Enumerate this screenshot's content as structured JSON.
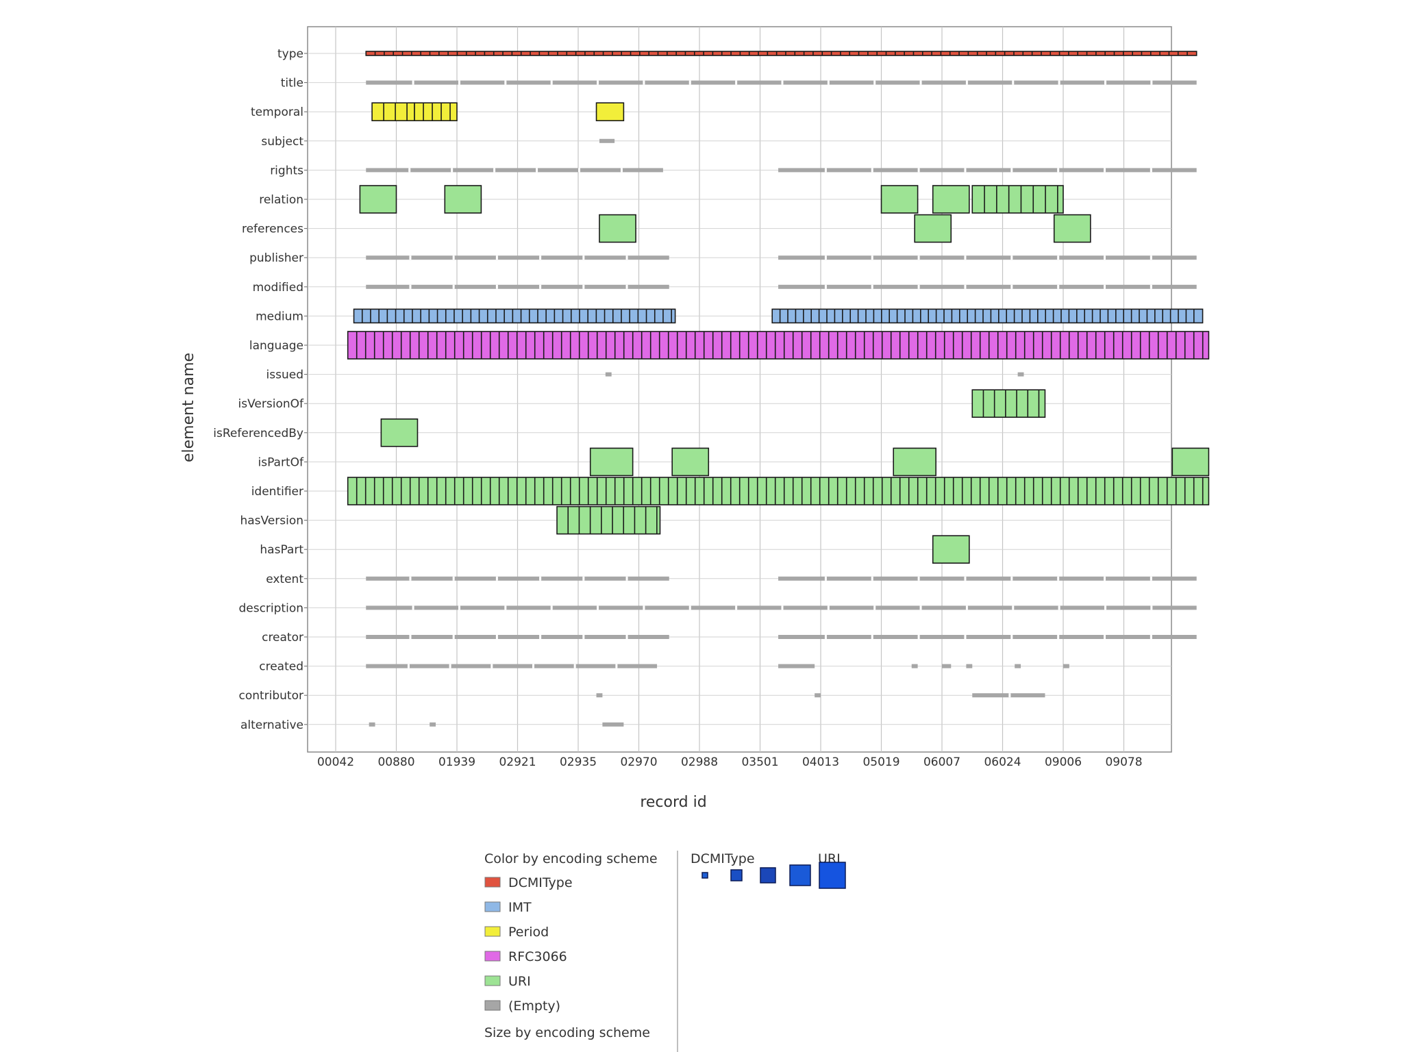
{
  "chart_data": {
    "type": "heatmap",
    "xlabel": "record id",
    "ylabel": "element name",
    "x_ticks": [
      "00042",
      "00880",
      "01939",
      "02921",
      "02935",
      "02970",
      "02988",
      "03501",
      "04013",
      "05019",
      "06007",
      "06024",
      "09006",
      "09078"
    ],
    "y_categories": [
      "type",
      "title",
      "temporal",
      "subject",
      "rights",
      "relation",
      "references",
      "publisher",
      "modified",
      "medium",
      "language",
      "issued",
      "isVersionOf",
      "isReferencedBy",
      "isPartOf",
      "identifier",
      "hasVersion",
      "hasPart",
      "extent",
      "description",
      "creator",
      "created",
      "contributor",
      "alternative"
    ],
    "colors": {
      "DCMIType": "#e0533f",
      "IMT": "#8fb8e6",
      "Period": "#f2ee3a",
      "RFC3066": "#e06ae6",
      "URI": "#9de394",
      "(Empty)": "#a6a6a6"
    },
    "series": [
      {
        "element": "type",
        "scheme": "DCMIType",
        "size": 1,
        "segments": [
          [
            0.5,
            14.2,
            0.48
          ]
        ]
      },
      {
        "element": "title",
        "scheme": "(Empty)",
        "size": 1,
        "segments": [
          [
            0.5,
            14.2,
            0
          ]
        ]
      },
      {
        "element": "temporal",
        "scheme": "Period",
        "size": 3,
        "segments": [
          [
            0.6,
            1.3,
            0.25
          ],
          [
            1.3,
            2.0,
            0.5
          ],
          [
            4.3,
            4.75,
            0
          ]
        ]
      },
      {
        "element": "subject",
        "scheme": "(Empty)",
        "size": 1,
        "segments": [
          [
            4.35,
            4.6,
            0
          ]
        ]
      },
      {
        "element": "rights",
        "scheme": "(Empty)",
        "size": 1,
        "segments": [
          [
            0.5,
            5.4,
            0
          ],
          [
            7.3,
            14.2,
            0
          ]
        ]
      },
      {
        "element": "relation",
        "scheme": "URI",
        "size": 4,
        "segments": [
          [
            0.4,
            1.0,
            0
          ],
          [
            1.8,
            2.4,
            0
          ],
          [
            9.0,
            9.6,
            0
          ],
          [
            9.85,
            10.45,
            0
          ],
          [
            10.5,
            12.0,
            0.2
          ]
        ]
      },
      {
        "element": "references",
        "scheme": "URI",
        "size": 4,
        "segments": [
          [
            4.35,
            4.95,
            0
          ],
          [
            9.55,
            10.15,
            0
          ],
          [
            11.85,
            12.45,
            0
          ]
        ]
      },
      {
        "element": "publisher",
        "scheme": "(Empty)",
        "size": 1,
        "segments": [
          [
            0.5,
            5.5,
            0
          ],
          [
            7.3,
            14.2,
            0
          ]
        ]
      },
      {
        "element": "modified",
        "scheme": "(Empty)",
        "size": 1,
        "segments": [
          [
            0.5,
            5.5,
            0
          ],
          [
            7.3,
            14.2,
            0
          ]
        ]
      },
      {
        "element": "medium",
        "scheme": "IMT",
        "size": 2,
        "segments": [
          [
            0.3,
            5.6,
            0.55
          ],
          [
            7.2,
            14.3,
            0.6
          ]
        ]
      },
      {
        "element": "language",
        "scheme": "RFC3066",
        "size": 5,
        "segments": [
          [
            0.2,
            14.4,
            0.5
          ]
        ]
      },
      {
        "element": "issued",
        "scheme": "(Empty)",
        "size": 1,
        "segments": [
          [
            4.45,
            4.55,
            0
          ],
          [
            11.25,
            11.35,
            0
          ]
        ]
      },
      {
        "element": "isVersionOf",
        "scheme": "URI",
        "size": 4,
        "segments": [
          [
            10.5,
            11.7,
            0.3
          ]
        ]
      },
      {
        "element": "isReferencedBy",
        "scheme": "URI",
        "size": 4,
        "segments": [
          [
            0.75,
            1.35,
            0
          ]
        ]
      },
      {
        "element": "isPartOf",
        "scheme": "URI",
        "size": 4,
        "segments": [
          [
            4.2,
            4.9,
            0
          ],
          [
            5.55,
            6.15,
            0
          ],
          [
            9.2,
            9.9,
            0
          ],
          [
            13.8,
            14.4,
            0
          ]
        ]
      },
      {
        "element": "identifier",
        "scheme": "URI",
        "size": 5,
        "segments": [
          [
            0.2,
            14.4,
            0.5
          ]
        ]
      },
      {
        "element": "hasVersion",
        "scheme": "URI",
        "size": 4,
        "segments": [
          [
            3.65,
            5.35,
            0.3
          ]
        ]
      },
      {
        "element": "hasPart",
        "scheme": "URI",
        "size": 4,
        "segments": [
          [
            9.85,
            10.45,
            0
          ]
        ]
      },
      {
        "element": "extent",
        "scheme": "(Empty)",
        "size": 1,
        "segments": [
          [
            0.5,
            5.5,
            0
          ],
          [
            7.3,
            14.2,
            0
          ]
        ]
      },
      {
        "element": "description",
        "scheme": "(Empty)",
        "size": 1,
        "segments": [
          [
            0.5,
            14.2,
            0
          ]
        ]
      },
      {
        "element": "creator",
        "scheme": "(Empty)",
        "size": 1,
        "segments": [
          [
            0.5,
            5.5,
            0
          ],
          [
            7.3,
            14.2,
            0
          ]
        ]
      },
      {
        "element": "created",
        "scheme": "(Empty)",
        "size": 1,
        "segments": [
          [
            0.5,
            5.3,
            0
          ],
          [
            7.3,
            7.9,
            0
          ],
          [
            9.5,
            9.6,
            0
          ],
          [
            10.0,
            10.15,
            0
          ],
          [
            10.4,
            10.5,
            0
          ],
          [
            11.2,
            11.3,
            0
          ],
          [
            12.0,
            12.1,
            0
          ]
        ]
      },
      {
        "element": "contributor",
        "scheme": "(Empty)",
        "size": 1,
        "segments": [
          [
            4.3,
            4.4,
            0
          ],
          [
            7.9,
            8.0,
            0
          ],
          [
            10.5,
            11.7,
            0
          ]
        ]
      },
      {
        "element": "alternative",
        "scheme": "(Empty)",
        "size": 1,
        "segments": [
          [
            0.55,
            0.65,
            0
          ],
          [
            1.55,
            1.65,
            0
          ],
          [
            4.4,
            4.75,
            0
          ]
        ]
      }
    ],
    "legend": {
      "color_title": "Color by encoding scheme",
      "color_entries": [
        "DCMIType",
        "IMT",
        "Period",
        "RFC3066",
        "URI",
        "(Empty)"
      ],
      "size_title": "Size by encoding scheme",
      "size_labels": [
        "DCMIType",
        "URI"
      ],
      "size_steps": 5
    },
    "grid": true
  }
}
